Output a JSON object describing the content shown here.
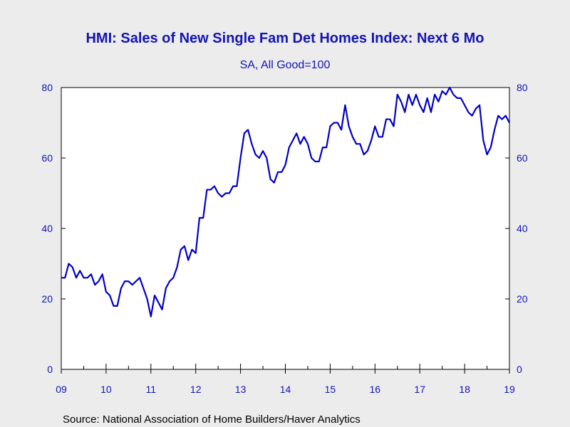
{
  "chart_data": {
    "type": "line",
    "title": "HMI: Sales of New Single Fam Det Homes Index: Next 6 Mo",
    "subtitle": "SA, All Good=100",
    "source": "Source:  National Association of Home Builders/Haver Analytics",
    "ylim": [
      0,
      80
    ],
    "y_ticks": [
      "0",
      "20",
      "40",
      "60",
      "80"
    ],
    "x_tick_labels": [
      "09",
      "10",
      "11",
      "12",
      "13",
      "14",
      "15",
      "16",
      "17",
      "18",
      "19"
    ],
    "x_start": "2009-01",
    "x_end": "2019-02",
    "dual_y_axis": true,
    "grid": false,
    "line_color": "#0000c8",
    "series": [
      {
        "name": "",
        "values": [
          26,
          26,
          30,
          29,
          26,
          28,
          26,
          26,
          27,
          24,
          25,
          27,
          22,
          21,
          18,
          18,
          23,
          25,
          25,
          24,
          25,
          26,
          23,
          20,
          15,
          21,
          19,
          17,
          23,
          25,
          26,
          29,
          34,
          35,
          31,
          34,
          33,
          43,
          43,
          51,
          51,
          52,
          50,
          49,
          50,
          50,
          52,
          52,
          60,
          67,
          68,
          64,
          61,
          60,
          62,
          60,
          54,
          53,
          56,
          56,
          58,
          63,
          65,
          67,
          64,
          66,
          64,
          60,
          59,
          59,
          63,
          63,
          69,
          70,
          70,
          68,
          75,
          69,
          66,
          64,
          64,
          61,
          62,
          65,
          69,
          66,
          66,
          71,
          71,
          69,
          78,
          76,
          73,
          78,
          75,
          78,
          75,
          73,
          77,
          73,
          78,
          76,
          79,
          78,
          80,
          78,
          77,
          77,
          75,
          73,
          72,
          74,
          75,
          65,
          61,
          63,
          68,
          72,
          71,
          72,
          70
        ]
      }
    ]
  }
}
